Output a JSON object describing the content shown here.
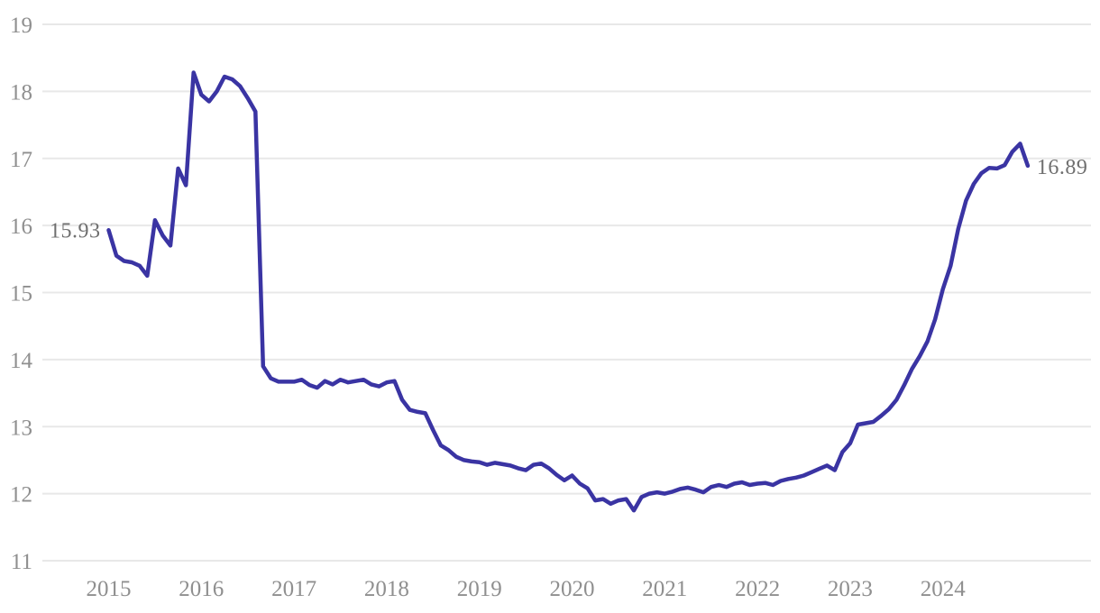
{
  "chart_data": {
    "type": "line",
    "title": "",
    "xlabel": "",
    "ylabel": "",
    "grid": "horizontal",
    "legend": "none",
    "ylim": [
      11,
      19
    ],
    "y_ticks": [
      19,
      18,
      17,
      16,
      15,
      14,
      13,
      12,
      11
    ],
    "x_tick_labels": [
      "2015",
      "2016",
      "2017",
      "2018",
      "2019",
      "2020",
      "2021",
      "2022",
      "2023",
      "2024"
    ],
    "frequency": "monthly",
    "start_year_label": "2015",
    "first_point_label": "15.93",
    "last_point_label": "16.89",
    "series": [
      {
        "name": "value",
        "values": [
          15.93,
          15.55,
          15.47,
          15.45,
          15.4,
          15.25,
          16.08,
          15.85,
          15.7,
          16.85,
          16.6,
          18.28,
          17.95,
          17.85,
          18.0,
          18.22,
          18.18,
          18.08,
          17.9,
          17.7,
          13.9,
          13.72,
          13.67,
          13.67,
          13.67,
          13.7,
          13.62,
          13.58,
          13.68,
          13.63,
          13.7,
          13.66,
          13.68,
          13.7,
          13.63,
          13.6,
          13.66,
          13.68,
          13.4,
          13.25,
          13.22,
          13.2,
          12.95,
          12.72,
          12.65,
          12.55,
          12.5,
          12.48,
          12.47,
          12.43,
          12.46,
          12.44,
          12.42,
          12.38,
          12.35,
          12.43,
          12.45,
          12.38,
          12.28,
          12.2,
          12.27,
          12.15,
          12.08,
          11.9,
          11.92,
          11.85,
          11.9,
          11.92,
          11.75,
          11.95,
          12.0,
          12.02,
          12.0,
          12.03,
          12.07,
          12.09,
          12.06,
          12.02,
          12.1,
          12.13,
          12.1,
          12.15,
          12.17,
          12.13,
          12.15,
          12.16,
          12.13,
          12.19,
          12.22,
          12.24,
          12.27,
          12.32,
          12.37,
          12.42,
          12.35,
          12.62,
          12.75,
          13.03,
          13.05,
          13.07,
          13.16,
          13.26,
          13.4,
          13.62,
          13.86,
          14.05,
          14.27,
          14.6,
          15.05,
          15.4,
          15.95,
          16.37,
          16.62,
          16.78,
          16.86,
          16.85,
          16.9,
          17.1,
          17.22,
          16.89
        ]
      }
    ],
    "colors": {
      "line": "#3a34a3",
      "grid": "#e8e8e8",
      "tick_text": "#8f8f8f",
      "point_label_text": "#6f6f6f",
      "background": "#ffffff"
    }
  }
}
